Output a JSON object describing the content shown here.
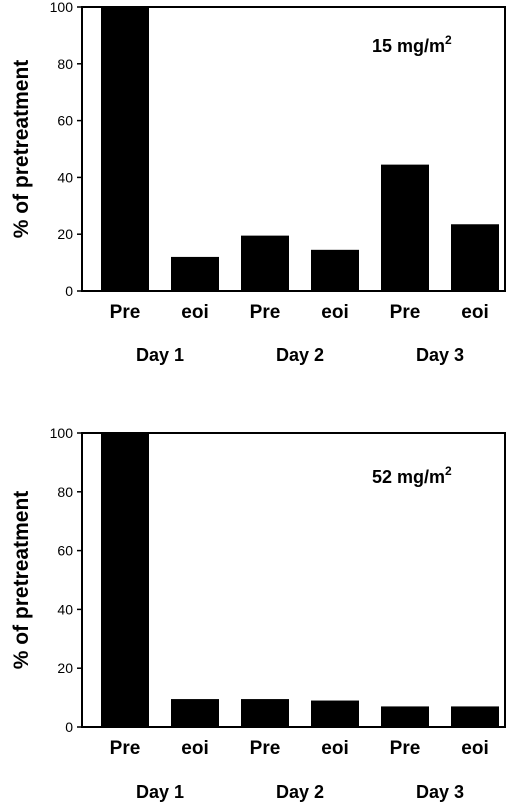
{
  "colors": {
    "bar": "#000000",
    "axis": "#000000",
    "background": "#ffffff"
  },
  "chart_data": [
    {
      "type": "bar",
      "title": "",
      "annotation": {
        "text": "15 mg/m",
        "sup": "2"
      },
      "ylabel": "% of pretreatment",
      "xlabel": "",
      "ylim": [
        0,
        100
      ],
      "yticks": [
        "0",
        "20",
        "40",
        "60",
        "80",
        "100"
      ],
      "grid": false,
      "categories": [
        "Pre",
        "eoi",
        "Pre",
        "eoi",
        "Pre",
        "eoi"
      ],
      "groups": [
        "Day 1",
        "Day 2",
        "Day 3"
      ],
      "values": [
        100,
        12,
        19.5,
        14.5,
        44.5,
        23.5
      ]
    },
    {
      "type": "bar",
      "title": "",
      "annotation": {
        "text": "52 mg/m",
        "sup": "2"
      },
      "ylabel": "% of pretreatment",
      "xlabel": "",
      "ylim": [
        0,
        100
      ],
      "yticks": [
        "0",
        "20",
        "40",
        "60",
        "80",
        "100"
      ],
      "grid": false,
      "categories": [
        "Pre",
        "eoi",
        "Pre",
        "eoi",
        "Pre",
        "eoi"
      ],
      "groups": [
        "Day 1",
        "Day 2",
        "Day 3"
      ],
      "values": [
        100,
        9.5,
        9.5,
        9,
        7,
        7
      ]
    }
  ]
}
